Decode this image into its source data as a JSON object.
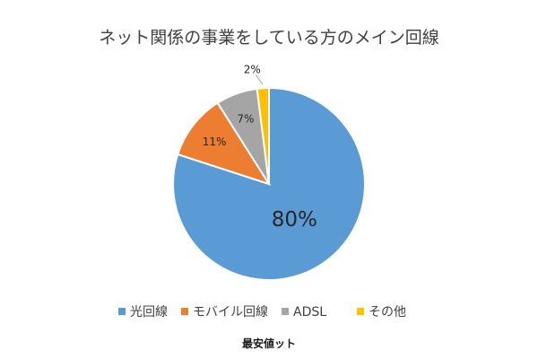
{
  "chart_data": {
    "type": "pie",
    "title": "ネット関係の事業をしている方のメイン回線",
    "categories": [
      "光回線",
      "モバイル回線",
      "ADSL",
      "その他"
    ],
    "values": [
      80,
      11,
      7,
      2
    ],
    "data_labels": [
      "80%",
      "11%",
      "7%",
      "2%"
    ],
    "colors": [
      "#5B9BD5",
      "#ED7D31",
      "#A5A5A5",
      "#FFC000"
    ],
    "start_angle_deg": 0,
    "direction": "clockwise",
    "legend_position": "bottom"
  },
  "watermark": {
    "text": "最安値ット"
  }
}
